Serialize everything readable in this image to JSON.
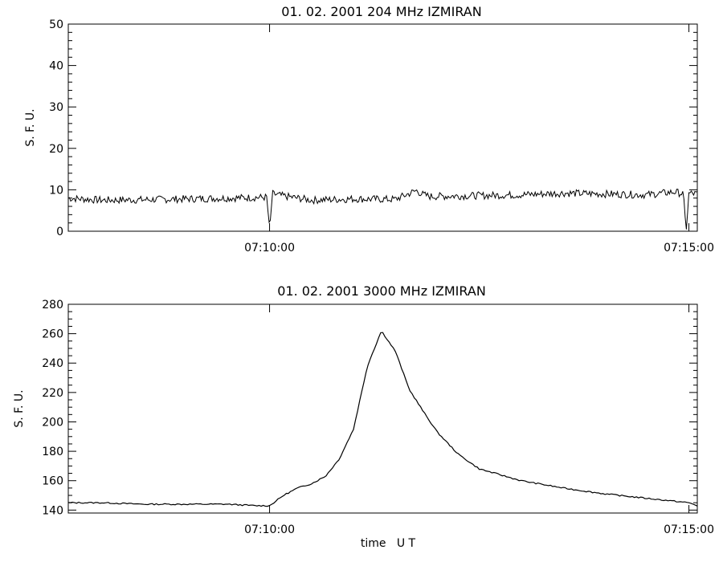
{
  "chart_data": [
    {
      "type": "line",
      "title": "01.  02.  2001    204 MHz    IZMIRAN",
      "ylabel": "S. F. U.",
      "xlabel": "",
      "ylim": [
        0,
        50
      ],
      "yticks": [
        0,
        10,
        20,
        30,
        40,
        50
      ],
      "xlim": [
        "07:07:36",
        "07:15:06"
      ],
      "xticks": [
        "07:10:00",
        "07:15:00"
      ],
      "grid": false,
      "series": [
        {
          "x": [
            "07:07:36",
            "07:08:00",
            "07:08:30",
            "07:09:00",
            "07:09:30",
            "07:09:58",
            "07:10:00",
            "07:10:02",
            "07:10:10",
            "07:10:20",
            "07:10:30",
            "07:11:00",
            "07:11:30",
            "07:11:45",
            "07:11:50",
            "07:11:55",
            "07:12:30",
            "07:13:00",
            "07:13:30",
            "07:14:00",
            "07:14:30",
            "07:14:50",
            "07:14:56",
            "07:14:58",
            "07:15:00",
            "07:15:06"
          ],
          "values": [
            8.0,
            7.5,
            7.6,
            7.8,
            8.0,
            8.2,
            0.0,
            9.0,
            8.5,
            8.0,
            7.5,
            7.8,
            7.7,
            9.8,
            8.8,
            8.4,
            8.6,
            8.8,
            9.2,
            9.0,
            8.8,
            9.5,
            9.0,
            0.0,
            9.2,
            9.0
          ]
        }
      ]
    },
    {
      "type": "line",
      "title": "01.  02.  2001    3000 MHz    IZMIRAN",
      "ylabel": "S. F. U.",
      "xlabel": "time   U T",
      "ylim": [
        138,
        280
      ],
      "yticks": [
        140,
        160,
        180,
        200,
        220,
        240,
        260,
        280
      ],
      "xlim": [
        "07:07:36",
        "07:15:06"
      ],
      "xticks": [
        "07:10:00",
        "07:15:00"
      ],
      "grid": false,
      "series": [
        {
          "x": [
            "07:07:36",
            "07:08:00",
            "07:08:30",
            "07:09:00",
            "07:09:30",
            "07:09:50",
            "07:10:00",
            "07:10:10",
            "07:10:20",
            "07:10:30",
            "07:10:40",
            "07:10:50",
            "07:11:00",
            "07:11:10",
            "07:11:20",
            "07:11:30",
            "07:11:40",
            "07:11:50",
            "07:12:00",
            "07:12:15",
            "07:12:30",
            "07:13:00",
            "07:13:30",
            "07:14:00",
            "07:14:30",
            "07:15:00",
            "07:15:06"
          ],
          "values": [
            145,
            145,
            144,
            144,
            144,
            143,
            143,
            150,
            155,
            158,
            163,
            175,
            195,
            238,
            262,
            248,
            222,
            207,
            193,
            178,
            168,
            160,
            155,
            151,
            148,
            145,
            143
          ]
        }
      ]
    }
  ]
}
